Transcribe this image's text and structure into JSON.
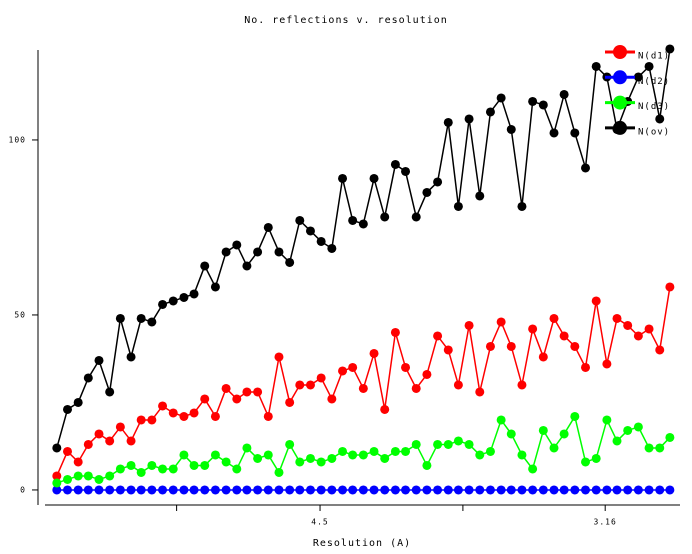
{
  "chart_data": {
    "type": "line",
    "title": "No. reflections v. resolution",
    "xlabel": "Resolution (A)",
    "x": [
      0.0026,
      0.0045,
      0.0064,
      0.0082,
      0.0101,
      0.012,
      0.0139,
      0.0158,
      0.0176,
      0.0195,
      0.0214,
      0.0233,
      0.0252,
      0.027,
      0.0289,
      0.0308,
      0.0327,
      0.0346,
      0.0364,
      0.0383,
      0.0402,
      0.0421,
      0.044,
      0.0458,
      0.0477,
      0.0496,
      0.0515,
      0.0534,
      0.0552,
      0.0571,
      0.059,
      0.0609,
      0.0628,
      0.0646,
      0.0665,
      0.0684,
      0.0703,
      0.0722,
      0.074,
      0.0759,
      0.0778,
      0.0797,
      0.0816,
      0.0834,
      0.0853,
      0.0872,
      0.0891,
      0.091,
      0.0928,
      0.0947,
      0.0966,
      0.0985,
      0.1004,
      0.1022,
      0.1041,
      0.106,
      0.1079,
      0.1098,
      0.1116
    ],
    "series": [
      {
        "name": "N(d1)",
        "color": "#ff0000",
        "values": [
          4,
          11,
          8,
          13,
          16,
          14,
          18,
          14,
          20,
          20,
          24,
          22,
          21,
          22,
          26,
          21,
          29,
          26,
          28,
          28,
          21,
          38,
          25,
          30,
          30,
          32,
          26,
          34,
          35,
          29,
          39,
          23,
          45,
          35,
          29,
          33,
          44,
          40,
          30,
          47,
          28,
          41,
          48,
          41,
          30,
          46,
          38,
          49,
          44,
          41,
          35,
          54,
          36,
          49,
          47,
          44,
          46,
          40,
          58
        ]
      },
      {
        "name": "N(d2)",
        "color": "#0000ff",
        "values": [
          0,
          0,
          0,
          0,
          0,
          0,
          0,
          0,
          0,
          0,
          0,
          0,
          0,
          0,
          0,
          0,
          0,
          0,
          0,
          0,
          0,
          0,
          0,
          0,
          0,
          0,
          0,
          0,
          0,
          0,
          0,
          0,
          0,
          0,
          0,
          0,
          0,
          0,
          0,
          0,
          0,
          0,
          0,
          0,
          0,
          0,
          0,
          0,
          0,
          0,
          0,
          0,
          0,
          0,
          0,
          0,
          0,
          0,
          0
        ]
      },
      {
        "name": "N(d3)",
        "color": "#00ff00",
        "values": [
          2,
          3,
          4,
          4,
          3,
          4,
          6,
          7,
          5,
          7,
          6,
          6,
          10,
          7,
          7,
          10,
          8,
          6,
          12,
          9,
          10,
          5,
          13,
          8,
          9,
          8,
          9,
          11,
          10,
          10,
          11,
          9,
          11,
          11,
          13,
          7,
          13,
          13,
          14,
          13,
          10,
          11,
          20,
          16,
          10,
          6,
          17,
          12,
          16,
          21,
          8,
          9,
          20,
          14,
          17,
          18,
          12,
          12,
          15
        ]
      },
      {
        "name": "N(ov)",
        "color": "#000000",
        "values": [
          12,
          23,
          25,
          32,
          37,
          28,
          49,
          38,
          49,
          48,
          53,
          54,
          55,
          56,
          64,
          58,
          68,
          70,
          64,
          68,
          75,
          68,
          65,
          77,
          74,
          71,
          69,
          89,
          77,
          76,
          89,
          78,
          93,
          91,
          78,
          85,
          88,
          105,
          81,
          106,
          84,
          108,
          112,
          103,
          81,
          111,
          110,
          102,
          113,
          102,
          92,
          121,
          118,
          103,
          111,
          118,
          121,
          106,
          126
        ]
      }
    ],
    "xlim": [
      0.0005,
      0.1134
    ],
    "xticks": [
      {
        "value": 0.0494,
        "label": "4.5"
      },
      {
        "value": 0.1001,
        "label": "3.16"
      }
    ],
    "xminorticks": [
      0.0239,
      0.0748
    ],
    "ylim": [
      -4.3,
      125.7
    ],
    "yticks": [
      0,
      50,
      100
    ],
    "legend": "upper right"
  }
}
